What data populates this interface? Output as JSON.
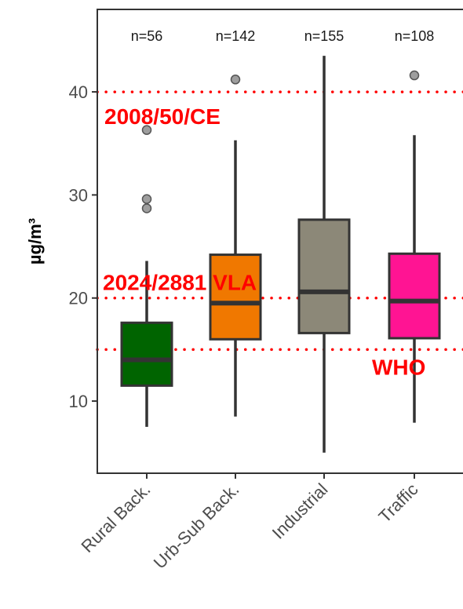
{
  "chart_data": {
    "type": "box",
    "ylabel": "µg/m³",
    "xlabel": "",
    "ylim": [
      3,
      48
    ],
    "yticks": [
      10,
      20,
      30,
      40
    ],
    "grid": false,
    "categories": [
      "Rural Back.",
      "Urb-Sub Back.",
      "Industrial",
      "Traffic"
    ],
    "n_labels": [
      "n=56",
      "n=142",
      "n=155",
      "n=108"
    ],
    "boxes": [
      {
        "whisker_low": 7.5,
        "q1": 11.5,
        "median": 14.0,
        "q3": 17.6,
        "whisker_high": 23.6,
        "outliers": [
          28.7,
          29.6,
          36.3
        ],
        "color": "#006400"
      },
      {
        "whisker_low": 8.5,
        "q1": 16.0,
        "median": 19.5,
        "q3": 24.2,
        "whisker_high": 35.3,
        "outliers": [
          41.2
        ],
        "color": "#f07800"
      },
      {
        "whisker_low": 5.0,
        "q1": 16.6,
        "median": 20.6,
        "q3": 27.6,
        "whisker_high": 43.5,
        "outliers": [],
        "color": "#8c8878"
      },
      {
        "whisker_low": 7.9,
        "q1": 16.1,
        "median": 19.7,
        "q3": 24.3,
        "whisker_high": 35.8,
        "outliers": [
          41.6
        ],
        "color": "#ff1493"
      }
    ],
    "reference_lines": [
      {
        "value": 40,
        "label": "2008/50/CE",
        "color": "#ff0000"
      },
      {
        "value": 20,
        "label": "2024/2881 VLA",
        "color": "#ff0000"
      },
      {
        "value": 15,
        "label": "WHO",
        "color": "#ff0000"
      }
    ]
  }
}
